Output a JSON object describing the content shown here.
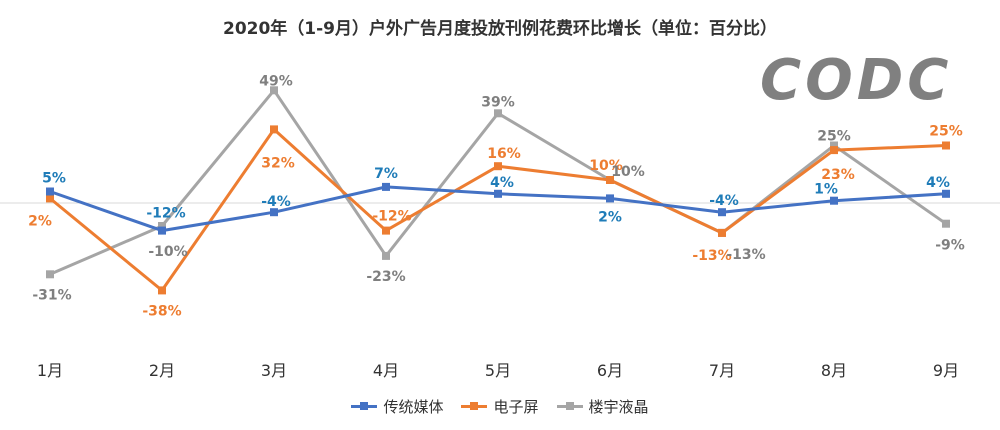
{
  "chart_data": {
    "type": "line",
    "title": "2020年（1-9月）户外广告月度投放刊例花费环比增长（单位：百分比）",
    "categories": [
      "1月",
      "2月",
      "3月",
      "4月",
      "5月",
      "6月",
      "7月",
      "8月",
      "9月"
    ],
    "series": [
      {
        "name": "传统媒体",
        "color": "#4472C4",
        "label_color": "#1F7CB8",
        "values": [
          5,
          -12,
          -4,
          7,
          4,
          2,
          -4,
          1,
          4
        ]
      },
      {
        "name": "电子屏",
        "color": "#ED7D31",
        "label_color": "#ED7D31",
        "values": [
          2,
          -38,
          32,
          -12,
          16,
          10,
          -13,
          23,
          25
        ]
      },
      {
        "name": "楼宇液晶",
        "color": "#A5A5A5",
        "label_color": "#7F7F7F",
        "values": [
          -31,
          -10,
          49,
          -23,
          39,
          10,
          -13,
          25,
          -9
        ]
      }
    ],
    "value_suffix": "%",
    "legend_position": "bottom",
    "grid": false,
    "zero_line": true
  },
  "watermark": "CODC"
}
